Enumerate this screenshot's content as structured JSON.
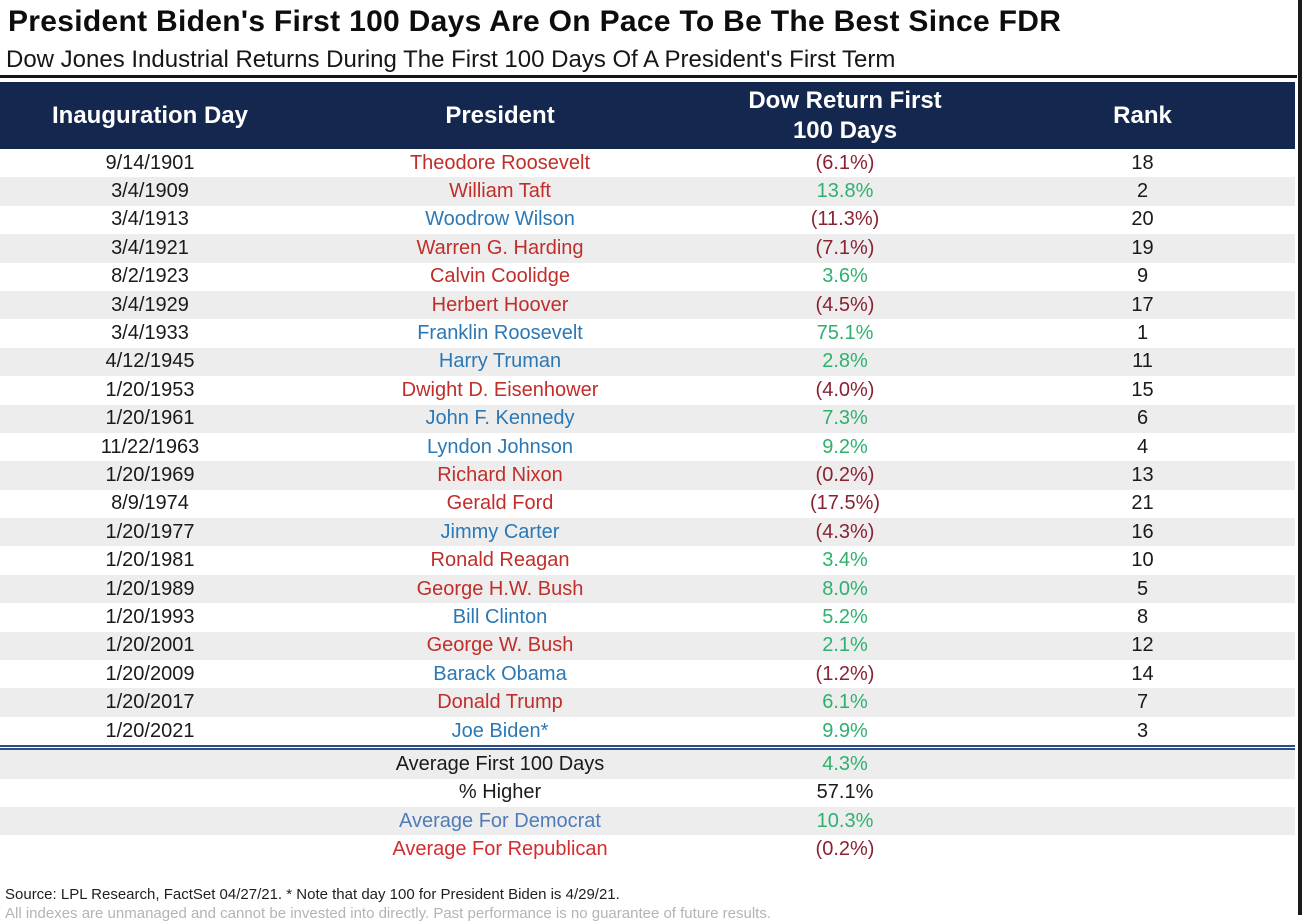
{
  "title": "President Biden's First 100 Days Are On Pace To Be The Best Since FDR",
  "subtitle": "Dow Jones Industrial Returns During The First 100 Days Of A President's First Term",
  "header": {
    "col1": "Inauguration Day",
    "col2": "President",
    "col3_line1": "Dow Return First",
    "col3_line2": "100 Days",
    "col4": "Rank"
  },
  "chart_data": {
    "type": "table",
    "title": "President Biden's First 100 Days Are On Pace To Be The Best Since FDR",
    "subtitle": "Dow Jones Industrial Returns During The First 100 Days Of A President's First Term",
    "columns": [
      "Inauguration Day",
      "President",
      "Dow Return First 100 Days",
      "Rank"
    ],
    "rows": [
      {
        "date": "9/14/1901",
        "president": "Theodore Roosevelt",
        "party": "republican",
        "return": "(6.1%)",
        "return_value": -6.1,
        "rank": "18"
      },
      {
        "date": "3/4/1909",
        "president": "William Taft",
        "party": "republican",
        "return": "13.8%",
        "return_value": 13.8,
        "rank": "2"
      },
      {
        "date": "3/4/1913",
        "president": "Woodrow Wilson",
        "party": "democrat",
        "return": "(11.3%)",
        "return_value": -11.3,
        "rank": "20"
      },
      {
        "date": "3/4/1921",
        "president": "Warren G. Harding",
        "party": "republican",
        "return": "(7.1%)",
        "return_value": -7.1,
        "rank": "19"
      },
      {
        "date": "8/2/1923",
        "president": "Calvin Coolidge",
        "party": "republican",
        "return": "3.6%",
        "return_value": 3.6,
        "rank": "9"
      },
      {
        "date": "3/4/1929",
        "president": "Herbert Hoover",
        "party": "republican",
        "return": "(4.5%)",
        "return_value": -4.5,
        "rank": "17"
      },
      {
        "date": "3/4/1933",
        "president": "Franklin Roosevelt",
        "party": "democrat",
        "return": "75.1%",
        "return_value": 75.1,
        "rank": "1"
      },
      {
        "date": "4/12/1945",
        "president": "Harry Truman",
        "party": "democrat",
        "return": "2.8%",
        "return_value": 2.8,
        "rank": "11"
      },
      {
        "date": "1/20/1953",
        "president": "Dwight D. Eisenhower",
        "party": "republican",
        "return": "(4.0%)",
        "return_value": -4.0,
        "rank": "15"
      },
      {
        "date": "1/20/1961",
        "president": "John F. Kennedy",
        "party": "democrat",
        "return": "7.3%",
        "return_value": 7.3,
        "rank": "6"
      },
      {
        "date": "11/22/1963",
        "president": "Lyndon Johnson",
        "party": "democrat",
        "return": "9.2%",
        "return_value": 9.2,
        "rank": "4"
      },
      {
        "date": "1/20/1969",
        "president": "Richard Nixon",
        "party": "republican",
        "return": "(0.2%)",
        "return_value": -0.2,
        "rank": "13"
      },
      {
        "date": "8/9/1974",
        "president": "Gerald Ford",
        "party": "republican",
        "return": "(17.5%)",
        "return_value": -17.5,
        "rank": "21"
      },
      {
        "date": "1/20/1977",
        "president": "Jimmy Carter",
        "party": "democrat",
        "return": "(4.3%)",
        "return_value": -4.3,
        "rank": "16"
      },
      {
        "date": "1/20/1981",
        "president": "Ronald Reagan",
        "party": "republican",
        "return": "3.4%",
        "return_value": 3.4,
        "rank": "10"
      },
      {
        "date": "1/20/1989",
        "president": "George H.W. Bush",
        "party": "republican",
        "return": "8.0%",
        "return_value": 8.0,
        "rank": "5"
      },
      {
        "date": "1/20/1993",
        "president": "Bill Clinton",
        "party": "democrat",
        "return": "5.2%",
        "return_value": 5.2,
        "rank": "8"
      },
      {
        "date": "1/20/2001",
        "president": "George W. Bush",
        "party": "republican",
        "return": "2.1%",
        "return_value": 2.1,
        "rank": "12"
      },
      {
        "date": "1/20/2009",
        "president": "Barack Obama",
        "party": "democrat",
        "return": "(1.2%)",
        "return_value": -1.2,
        "rank": "14"
      },
      {
        "date": "1/20/2017",
        "president": "Donald Trump",
        "party": "republican",
        "return": "6.1%",
        "return_value": 6.1,
        "rank": "7"
      },
      {
        "date": "1/20/2021",
        "president": "Joe Biden*",
        "party": "democrat",
        "return": "9.9%",
        "return_value": 9.9,
        "rank": "3"
      }
    ],
    "summary": [
      {
        "label": "Average First 100 Days",
        "label_style": "plain",
        "value": "4.3%",
        "value_style": "pos",
        "value_number": 4.3
      },
      {
        "label": "% Higher",
        "label_style": "plain",
        "value": "57.1%",
        "value_style": "plain",
        "value_number": 57.1
      },
      {
        "label": "Average For Democrat",
        "label_style": "label-blue",
        "value": "10.3%",
        "value_style": "pos",
        "value_number": 10.3
      },
      {
        "label": "Average For Republican",
        "label_style": "label-red",
        "value": "(0.2%)",
        "value_style": "neg",
        "value_number": -0.2
      }
    ]
  },
  "footer": {
    "source_note": "Source: LPL Research, FactSet 04/27/21. * Note that day 100 for President Biden is 4/29/21.",
    "disclaimer_clipped": "All indexes are unmanaged and cannot be invested into directly. Past performance is no guarantee of future results."
  },
  "colors": {
    "navy": "#14274e",
    "row_gray": "#ededee",
    "republican_red": "#c12e2a",
    "democrat_blue": "#2b78b5",
    "positive_green": "#2fb16e",
    "negative_maroon": "#8a2232",
    "summary_blue": "#4f7cb8",
    "summary_red": "#d32b2e",
    "separator_navy": "#2e4d86"
  }
}
